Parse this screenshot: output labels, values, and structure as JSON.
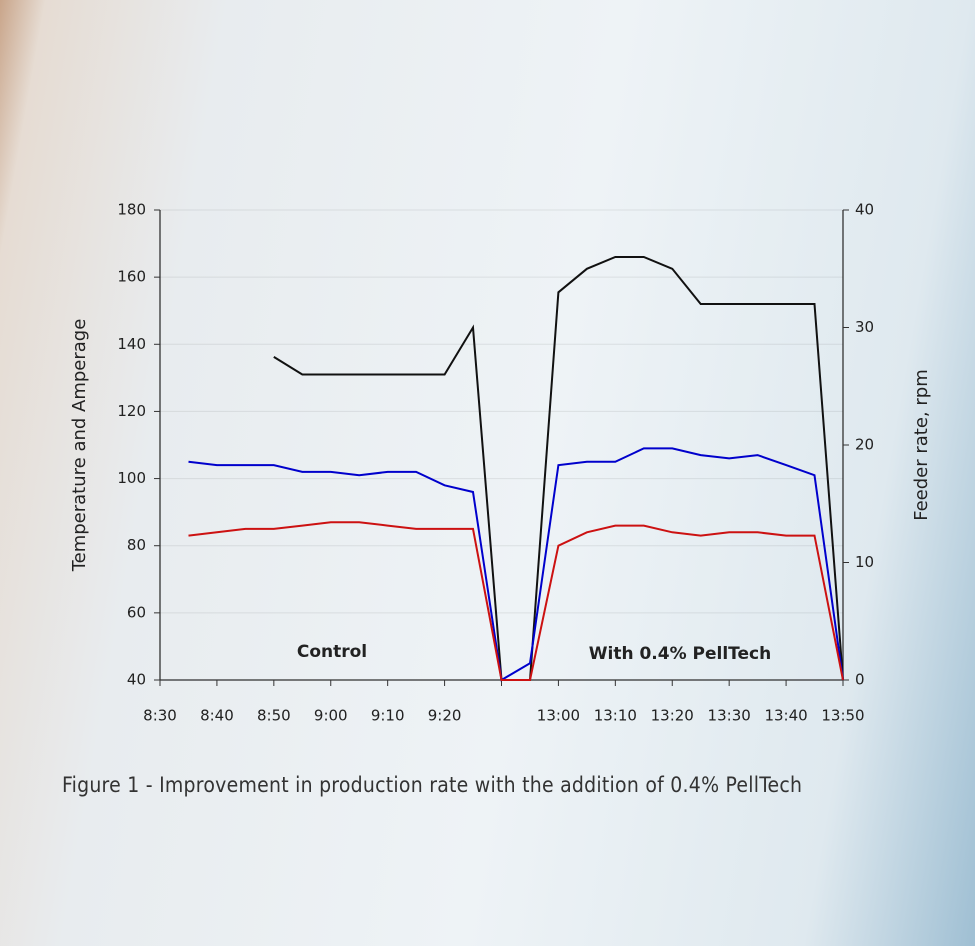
{
  "chart_data": {
    "type": "line",
    "caption": "Figure 1 - Improvement in production rate with the addition of 0.4% PellTech",
    "y_label": "Temperature and Amperage",
    "y2_label": "Feeder rate, rpm",
    "annotations": [
      "Control",
      "With 0.4% PellTech"
    ],
    "categories": [
      "8:30",
      null,
      "8:40",
      null,
      "8:50",
      null,
      "9:00",
      null,
      "9:10",
      null,
      "9:20",
      null,
      null,
      null,
      "13:00",
      null,
      "13:10",
      null,
      "13:20",
      null,
      "13:30",
      null,
      "13:40",
      null,
      "13:50"
    ],
    "ylim": [
      40,
      180
    ],
    "yticks": [
      40,
      60,
      80,
      100,
      120,
      140,
      160,
      180
    ],
    "y2lim": [
      0,
      40
    ],
    "y2ticks": [
      0,
      10,
      20,
      30,
      40
    ],
    "series": [
      {
        "color": "#111111",
        "axis": "y2",
        "values": [
          null,
          null,
          null,
          null,
          27.5,
          26,
          26,
          26,
          26,
          26,
          26,
          30,
          0,
          0,
          33,
          35,
          36,
          36,
          35,
          32,
          32,
          32,
          32,
          32,
          0
        ]
      },
      {
        "color": "#0000cc",
        "values": [
          null,
          105,
          104,
          104,
          104,
          102,
          102,
          101,
          102,
          102,
          98,
          96,
          40,
          45,
          104,
          105,
          105,
          109,
          109,
          107,
          106,
          107,
          104,
          101,
          40
        ]
      },
      {
        "color": "#cc1111",
        "values": [
          null,
          83,
          84,
          85,
          85,
          86,
          87,
          87,
          86,
          85,
          85,
          85,
          40,
          40,
          80,
          84,
          86,
          86,
          84,
          83,
          84,
          84,
          83,
          83,
          40
        ]
      }
    ]
  }
}
